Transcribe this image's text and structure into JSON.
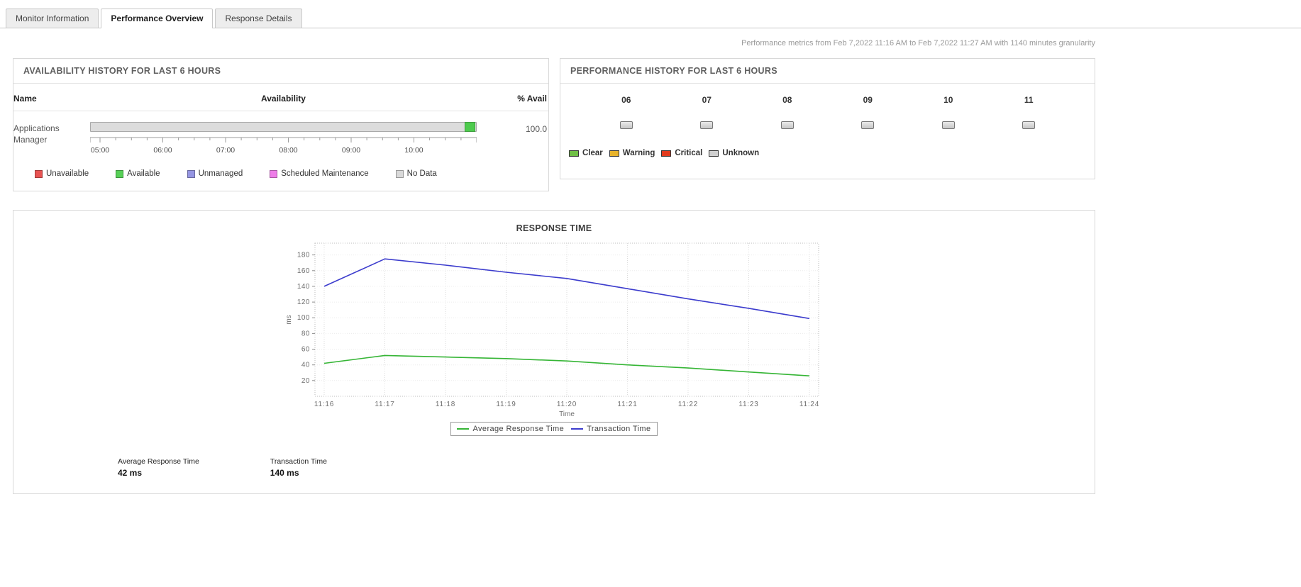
{
  "tabs": [
    {
      "label": "Monitor Information"
    },
    {
      "label": "Performance Overview"
    },
    {
      "label": "Response Details"
    }
  ],
  "metrics_note": "Performance metrics from Feb 7,2022 11:16 AM to Feb 7,2022 11:27 AM with 1140 minutes granularity",
  "availability_panel": {
    "title": "AVAILABILITY HISTORY FOR LAST 6 HOURS",
    "columns": {
      "name": "Name",
      "availability": "Availability",
      "percent": "% Avail"
    },
    "row": {
      "name": "Applications Manager",
      "percent": "100.0"
    },
    "bar": {
      "track_color": "#dcdcdc",
      "segment_color": "#4ecb4e"
    },
    "time_ticks": [
      "05:00",
      "06:00",
      "07:00",
      "08:00",
      "09:00",
      "10:00"
    ],
    "legend": [
      {
        "label": "Unavailable",
        "color": "#e85352"
      },
      {
        "label": "Available",
        "color": "#57d057"
      },
      {
        "label": "Unmanaged",
        "color": "#9595e2"
      },
      {
        "label": "Scheduled Maintenance",
        "color": "#ee7de8"
      },
      {
        "label": "No Data",
        "color": "#d9d9d9"
      }
    ]
  },
  "performance_panel": {
    "title": "PERFORMANCE HISTORY FOR LAST 6 HOURS",
    "hours": [
      "06",
      "07",
      "08",
      "09",
      "10",
      "11"
    ],
    "legend": [
      {
        "label": "Clear",
        "color": "#6fbf45"
      },
      {
        "label": "Warning",
        "color": "#e7b32b"
      },
      {
        "label": "Critical",
        "color": "#e23a1c"
      },
      {
        "label": "Unknown",
        "color": "#cfcfcf"
      }
    ]
  },
  "chart_data": {
    "type": "line",
    "title": "RESPONSE TIME",
    "xlabel": "Time",
    "ylabel": "ms",
    "x": [
      "11:16",
      "11:17",
      "11:18",
      "11:19",
      "11:20",
      "11:21",
      "11:22",
      "11:23",
      "11:24"
    ],
    "ylim": [
      0,
      195
    ],
    "yticks": [
      20,
      40,
      60,
      80,
      100,
      120,
      140,
      160,
      180
    ],
    "grid": true,
    "legend_position": "bottom",
    "series": [
      {
        "name": "Average Response Time",
        "color": "#35b535",
        "values": [
          42,
          52,
          50,
          48,
          45,
          40,
          36,
          31,
          26
        ]
      },
      {
        "name": "Transaction Time",
        "color": "#3c3ccd",
        "values": [
          140,
          175,
          167,
          158,
          150,
          137,
          124,
          112,
          99
        ]
      }
    ]
  },
  "summary": [
    {
      "label": "Average Response Time",
      "value": "42 ms"
    },
    {
      "label": "Transaction Time",
      "value": "140 ms"
    }
  ]
}
